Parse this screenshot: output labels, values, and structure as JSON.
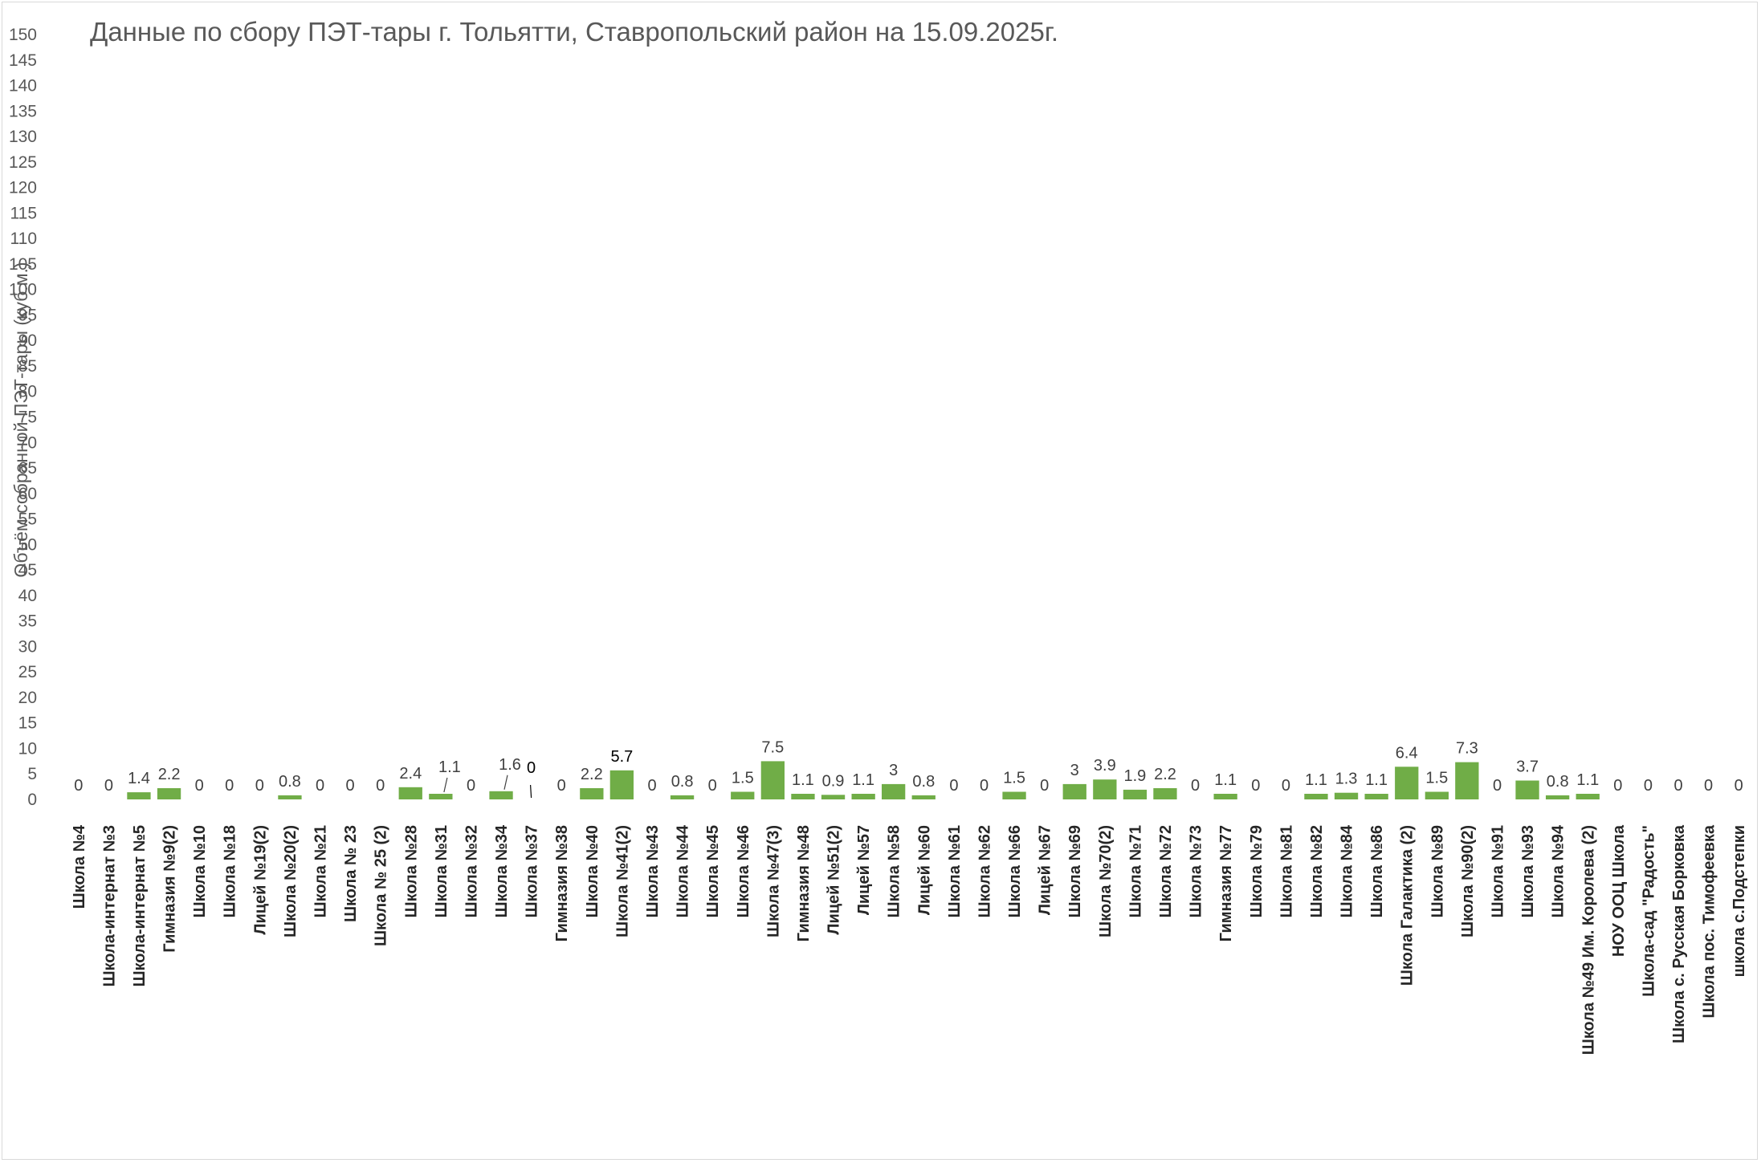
{
  "chart_data": {
    "type": "bar",
    "title": "Данные по сбору ПЭТ-тары г. Тольятти, Ставропольский район на 15.09.2025г.",
    "ylabel": "Объём собранной ПЭТ-тары (куб.м.)",
    "xlabel": "",
    "ylim": [
      0,
      150
    ],
    "ytick_step": 5,
    "ytick_labels": [
      "0",
      "5",
      "10",
      "15",
      "20",
      "25",
      "30",
      "35",
      "40",
      "45",
      "50",
      "55",
      "60",
      "65",
      "70",
      "75",
      "80",
      "85",
      "90",
      "95",
      "100",
      "105",
      "110",
      "115",
      "120",
      "125",
      "130",
      "135",
      "140",
      "145",
      "150"
    ],
    "grid": false,
    "legend": "none",
    "bar_color": "#70ad47",
    "categories": [
      "Школа №4",
      "Школа-интернат №3",
      "Школа-интернат №5",
      "Гимназия №9(2)",
      "Школа №10",
      "Школа №18",
      "Лицей №19(2)",
      "Школа №20(2)",
      "Школа №21",
      "Школа № 23",
      "Школа № 25 (2)",
      "Школа №28",
      "Школа №31",
      "Школа №32",
      "Школа №34",
      "Школа №37",
      "Гимназия №38",
      "Школа №40",
      "Школа №41(2)",
      "Школа №43",
      "Школа №44",
      "Школа №45",
      "Школа №46",
      "Школа №47(3)",
      "Гимназия №48",
      "Лицей №51(2)",
      "Лицей №57",
      "Школа №58",
      "Лицей №60",
      "Школа №61",
      "Школа №62",
      "Школа №66",
      "Лицей №67",
      "Школа №69",
      "Школа №70(2)",
      "Школа №71",
      "Школа №72",
      "Школа №73",
      "Гимназия №77",
      "Школа №79",
      "Школа №81",
      "Школа №82",
      "Школа №84",
      "Школа №86",
      "Школа Галактика (2)",
      "Школа №89",
      "Школа №90(2)",
      "Школа №91",
      "Школа №93",
      "Школа №94",
      "Школа №49 Им. Королева (2)",
      "НОУ ООЦ Школа",
      "Школа-сад \"Радость\"",
      "Школа с. Русская Борковка",
      "Школа пос. Тимофеевка",
      "школа с.Подстепки"
    ],
    "values": [
      0,
      0,
      1.4,
      2.2,
      0,
      0,
      0,
      0.8,
      0,
      0,
      0,
      2.4,
      1.1,
      0,
      1.6,
      0,
      0,
      2.2,
      5.7,
      0,
      0.8,
      0,
      1.5,
      7.5,
      1.1,
      0.9,
      1.1,
      3,
      0.8,
      0,
      0,
      1.5,
      0,
      3,
      3.9,
      1.9,
      2.2,
      0,
      1.1,
      0,
      0,
      1.1,
      1.3,
      1.1,
      6.4,
      1.5,
      7.3,
      0,
      3.7,
      0.8,
      1.1,
      0,
      0,
      0,
      0,
      0
    ],
    "data_labels": [
      "0",
      "0",
      "1.4",
      "2.2",
      "0",
      "0",
      "0",
      "0.8",
      "0",
      "0",
      "0",
      "2.4",
      "1.1",
      "0",
      "1.6",
      "0",
      "0",
      "2.2",
      "5.7",
      "0",
      "0.8",
      "0",
      "1.5",
      "7.5",
      "1.1",
      "0.9",
      "1.1",
      "3",
      "0.8",
      "0",
      "0",
      "1.5",
      "0",
      "3",
      "3.9",
      "1.9",
      "2.2",
      "0",
      "1.1",
      "0",
      "0",
      "1.1",
      "1.3",
      "1.1",
      "6.4",
      "1.5",
      "7.3",
      "0",
      "3.7",
      "0.8",
      "1.1",
      "0",
      "0",
      "0",
      "0",
      "0"
    ]
  }
}
